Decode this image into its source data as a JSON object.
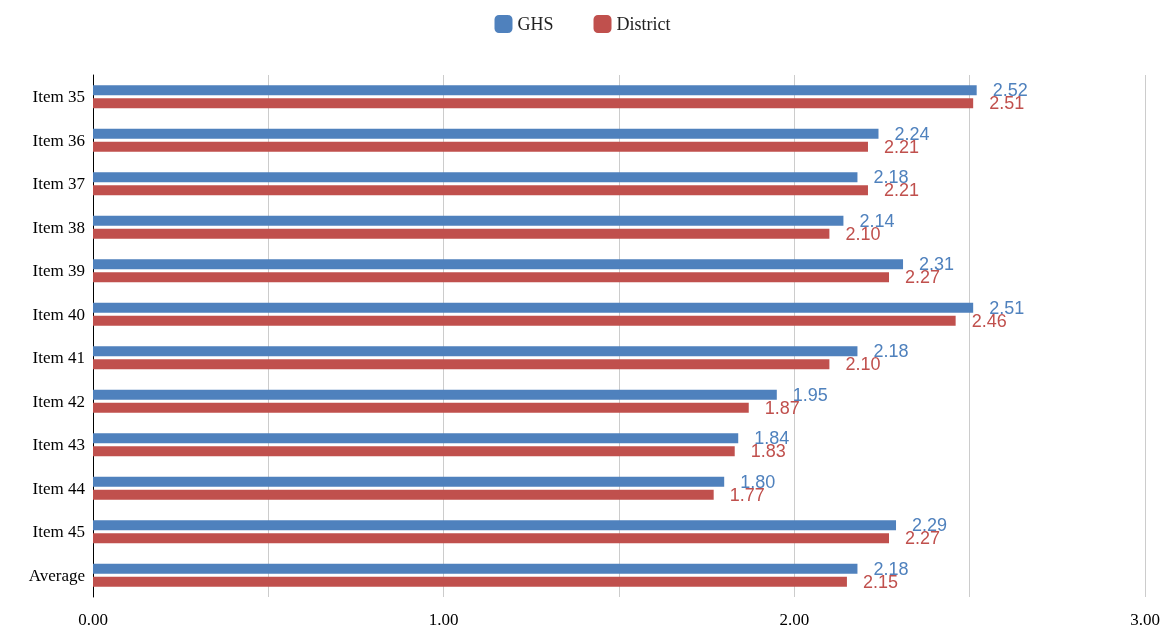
{
  "chart_data": {
    "type": "bar",
    "orientation": "horizontal",
    "categories": [
      "Item 35",
      "Item 36",
      "Item 37",
      "Item 38",
      "Item 39",
      "Item 40",
      "Item 41",
      "Item 42",
      "Item 43",
      "Item 44",
      "Item 45",
      "Average"
    ],
    "series": [
      {
        "name": "GHS",
        "color": "#4f81bd",
        "values": [
          2.52,
          2.24,
          2.18,
          2.14,
          2.31,
          2.51,
          2.18,
          1.95,
          1.84,
          1.8,
          2.29,
          2.18
        ],
        "value_labels": [
          "2.52",
          "2.24",
          "2.18",
          "2.14",
          "2.31",
          "2.51",
          "2.18",
          "1.95",
          "1.84",
          "1.80",
          "2.29",
          "2.18"
        ]
      },
      {
        "name": "District",
        "color": "#c0504d",
        "values": [
          2.51,
          2.21,
          2.21,
          2.1,
          2.27,
          2.46,
          2.1,
          1.87,
          1.83,
          1.77,
          2.27,
          2.15
        ],
        "value_labels": [
          "2.51",
          "2.21",
          "2.21",
          "2.10",
          "2.27",
          "2.46",
          "2.10",
          "1.87",
          "1.83",
          "1.77",
          "2.27",
          "2.15"
        ]
      }
    ],
    "xlim": [
      0,
      3
    ],
    "xticks": [
      {
        "value": 0,
        "label": "0.00"
      },
      {
        "value": 1,
        "label": "1.00"
      },
      {
        "value": 2,
        "label": "2.00"
      },
      {
        "value": 3,
        "label": "3.00"
      }
    ],
    "grid": "x",
    "legend": "top"
  }
}
